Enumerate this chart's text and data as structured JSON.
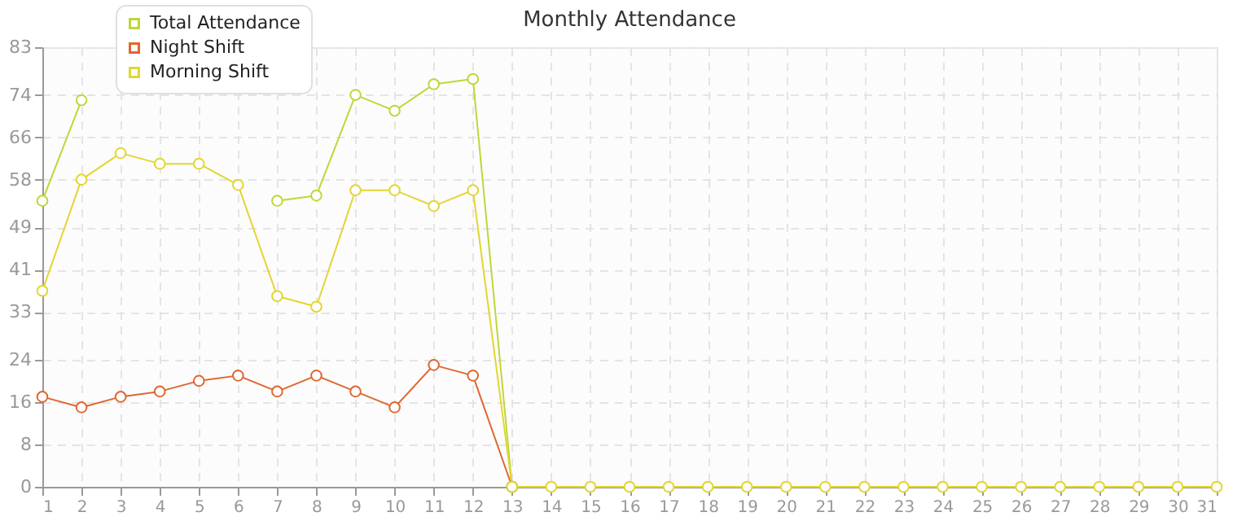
{
  "chart_data": {
    "type": "line",
    "title": "Monthly Attendance",
    "x": [
      1,
      2,
      3,
      4,
      5,
      6,
      7,
      8,
      9,
      10,
      11,
      12,
      13,
      14,
      15,
      16,
      17,
      18,
      19,
      20,
      21,
      22,
      23,
      24,
      25,
      26,
      27,
      28,
      29,
      30,
      31
    ],
    "series": [
      {
        "name": "Total Attendance",
        "color": "#bcd838",
        "values": [
          54,
          73,
          null,
          null,
          null,
          null,
          54,
          55,
          74,
          71,
          76,
          77,
          0,
          null,
          null,
          null,
          null,
          null,
          null,
          null,
          null,
          null,
          null,
          null,
          null,
          null,
          null,
          null,
          null,
          null,
          null
        ]
      },
      {
        "name": "Night Shift",
        "color": "#e0662f",
        "values": [
          17,
          15,
          17,
          18,
          20,
          21,
          18,
          21,
          18,
          15,
          23,
          21,
          0,
          null,
          null,
          null,
          null,
          null,
          null,
          null,
          null,
          null,
          null,
          null,
          null,
          null,
          null,
          null,
          null,
          null,
          null
        ]
      },
      {
        "name": "Morning Shift",
        "color": "#e2d630",
        "values": [
          37,
          58,
          63,
          61,
          61,
          57,
          36,
          34,
          56,
          56,
          53,
          56,
          0,
          0,
          0,
          0,
          0,
          0,
          0,
          0,
          0,
          0,
          0,
          0,
          0,
          0,
          0,
          0,
          0,
          0,
          0
        ]
      }
    ],
    "xlim": [
      1,
      31
    ],
    "xticks": [
      1,
      2,
      3,
      4,
      5,
      6,
      7,
      8,
      9,
      10,
      11,
      12,
      13,
      14,
      15,
      16,
      17,
      18,
      19,
      20,
      21,
      22,
      23,
      24,
      25,
      26,
      27,
      28,
      29,
      30,
      31
    ],
    "ylim": [
      0,
      83
    ],
    "yticks": [
      0,
      8,
      16,
      24,
      33,
      41,
      49,
      58,
      66,
      74,
      83
    ],
    "grid": true,
    "legend": "top left",
    "marker": "circle",
    "line_style": "solid"
  }
}
